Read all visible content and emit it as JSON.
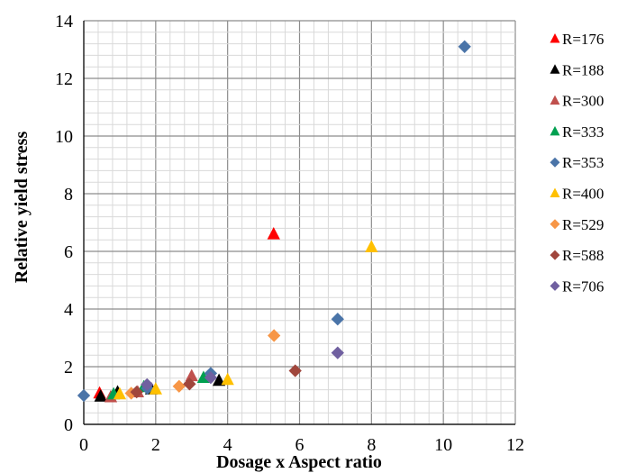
{
  "chart_data": {
    "type": "scatter",
    "title": "",
    "xlabel": "Dosage x Aspect ratio",
    "ylabel": "Relative yield stress",
    "xlim": [
      0,
      12
    ],
    "ylim": [
      0,
      14
    ],
    "x_ticks": [
      "0",
      "2",
      "4",
      "6",
      "8",
      "10",
      "12"
    ],
    "y_ticks": [
      "0",
      "2",
      "4",
      "6",
      "8",
      "10",
      "12",
      "14"
    ],
    "grid": "major and minor",
    "legend_position": "right",
    "series": [
      {
        "name": "R=176",
        "marker": "triangle",
        "color": "#ff0000",
        "points": [
          [
            0.44,
            1.08
          ],
          [
            5.28,
            6.6
          ]
        ]
      },
      {
        "name": "R=188",
        "marker": "triangle",
        "color": "#000000",
        "points": [
          [
            0.47,
            0.97
          ],
          [
            0.94,
            1.12
          ],
          [
            1.88,
            1.22
          ],
          [
            3.76,
            1.52
          ]
        ]
      },
      {
        "name": "R=300",
        "marker": "triangle",
        "color": "#c0504d",
        "points": [
          [
            0.75,
            0.95
          ],
          [
            1.5,
            1.12
          ],
          [
            3.0,
            1.68
          ]
        ]
      },
      {
        "name": "R=333",
        "marker": "triangle",
        "color": "#00a050",
        "points": [
          [
            0.83,
            1.05
          ],
          [
            1.67,
            1.3
          ],
          [
            3.33,
            1.62
          ]
        ]
      },
      {
        "name": "R=353",
        "marker": "diamond",
        "color": "#4a74a8",
        "points": [
          [
            0.0,
            1.0
          ],
          [
            1.77,
            1.25
          ],
          [
            3.53,
            1.77
          ],
          [
            7.06,
            3.65
          ],
          [
            10.59,
            13.1
          ]
        ]
      },
      {
        "name": "R=400",
        "marker": "triangle",
        "color": "#ffc000",
        "points": [
          [
            1.0,
            1.05
          ],
          [
            2.0,
            1.22
          ],
          [
            4.0,
            1.55
          ],
          [
            8.0,
            6.15
          ]
        ]
      },
      {
        "name": "R=529",
        "marker": "diamond",
        "color": "#f79646",
        "points": [
          [
            1.32,
            1.08
          ],
          [
            2.65,
            1.32
          ],
          [
            5.29,
            3.08
          ]
        ]
      },
      {
        "name": "R=588",
        "marker": "diamond",
        "color": "#a0463c",
        "points": [
          [
            1.47,
            1.12
          ],
          [
            2.94,
            1.4
          ],
          [
            5.88,
            1.86
          ]
        ]
      },
      {
        "name": "R=706",
        "marker": "diamond",
        "color": "#7060a0",
        "points": [
          [
            1.76,
            1.38
          ],
          [
            3.53,
            1.62
          ],
          [
            7.06,
            2.48
          ]
        ]
      }
    ]
  }
}
